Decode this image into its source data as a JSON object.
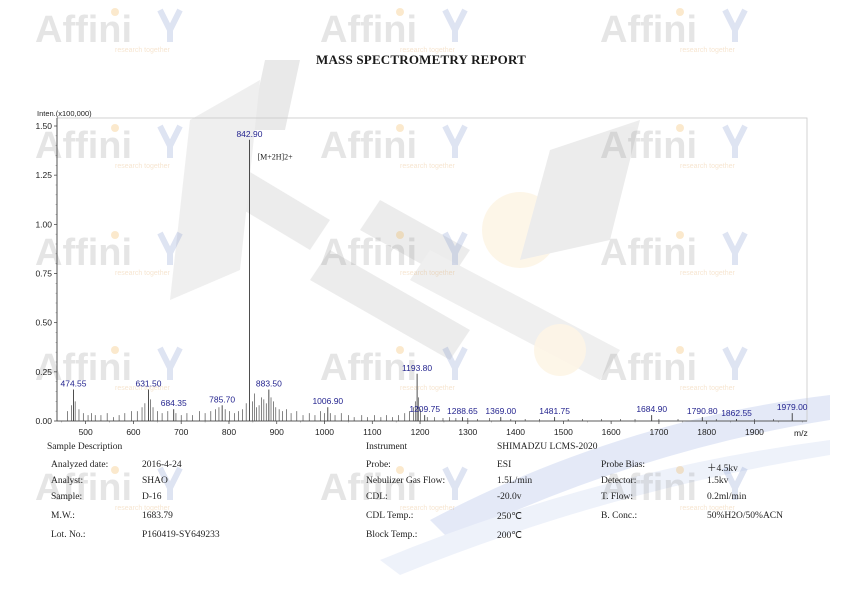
{
  "watermark": {
    "brand": "Affinity",
    "tagline": "research together"
  },
  "report": {
    "title": "MASS SPECTROMETRY REPORT"
  },
  "chart_data": {
    "type": "bar",
    "ylabel": "Inten.(x100,000)",
    "xlabel": "m/z",
    "xlim": [
      440,
      2010
    ],
    "ylim": [
      0,
      1.5
    ],
    "x_ticks": [
      500,
      600,
      700,
      800,
      900,
      1000,
      1100,
      1200,
      1300,
      1400,
      1500,
      1600,
      1700,
      1800,
      1900
    ],
    "y_ticks": [
      "0.00",
      "0.25",
      "0.50",
      "0.75",
      "1.00",
      "1.25",
      "1.50"
    ],
    "annotation": {
      "text": "[M+2H]2+",
      "x": 842.9
    },
    "labeled_peaks": [
      {
        "x": 474.55,
        "y": 0.16
      },
      {
        "x": 631.5,
        "y": 0.16
      },
      {
        "x": 684.35,
        "y": 0.06
      },
      {
        "x": 785.7,
        "y": 0.08
      },
      {
        "x": 842.9,
        "y": 1.43
      },
      {
        "x": 883.5,
        "y": 0.16
      },
      {
        "x": 1006.9,
        "y": 0.07
      },
      {
        "x": 1193.8,
        "y": 0.24
      },
      {
        "x": 1209.75,
        "y": 0.03
      },
      {
        "x": 1288.65,
        "y": 0.02
      },
      {
        "x": 1369.0,
        "y": 0.02
      },
      {
        "x": 1481.75,
        "y": 0.02
      },
      {
        "x": 1684.9,
        "y": 0.03
      },
      {
        "x": 1790.8,
        "y": 0.02
      },
      {
        "x": 1862.55,
        "y": 0.01
      },
      {
        "x": 1979.0,
        "y": 0.04
      }
    ],
    "minor_peaks": [
      [
        462,
        0.05
      ],
      [
        470,
        0.08
      ],
      [
        478,
        0.1
      ],
      [
        486,
        0.06
      ],
      [
        495,
        0.04
      ],
      [
        505,
        0.03
      ],
      [
        512,
        0.04
      ],
      [
        520,
        0.03
      ],
      [
        532,
        0.03
      ],
      [
        545,
        0.04
      ],
      [
        558,
        0.02
      ],
      [
        570,
        0.03
      ],
      [
        582,
        0.04
      ],
      [
        596,
        0.05
      ],
      [
        608,
        0.05
      ],
      [
        618,
        0.07
      ],
      [
        624,
        0.09
      ],
      [
        636,
        0.11
      ],
      [
        641,
        0.07
      ],
      [
        650,
        0.05
      ],
      [
        660,
        0.04
      ],
      [
        672,
        0.05
      ],
      [
        689,
        0.04
      ],
      [
        700,
        0.03
      ],
      [
        712,
        0.04
      ],
      [
        724,
        0.03
      ],
      [
        738,
        0.05
      ],
      [
        750,
        0.04
      ],
      [
        762,
        0.05
      ],
      [
        772,
        0.06
      ],
      [
        779,
        0.07
      ],
      [
        792,
        0.06
      ],
      [
        801,
        0.05
      ],
      [
        812,
        0.04
      ],
      [
        820,
        0.05
      ],
      [
        828,
        0.06
      ],
      [
        836,
        0.09
      ],
      [
        849,
        0.1
      ],
      [
        853,
        0.14
      ],
      [
        858,
        0.07
      ],
      [
        863,
        0.08
      ],
      [
        868,
        0.12
      ],
      [
        873,
        0.11
      ],
      [
        878,
        0.09
      ],
      [
        888,
        0.12
      ],
      [
        893,
        0.1
      ],
      [
        898,
        0.07
      ],
      [
        905,
        0.06
      ],
      [
        912,
        0.05
      ],
      [
        920,
        0.06
      ],
      [
        930,
        0.04
      ],
      [
        942,
        0.05
      ],
      [
        955,
        0.03
      ],
      [
        968,
        0.04
      ],
      [
        980,
        0.03
      ],
      [
        992,
        0.05
      ],
      [
        1000,
        0.04
      ],
      [
        1012,
        0.04
      ],
      [
        1022,
        0.03
      ],
      [
        1035,
        0.04
      ],
      [
        1050,
        0.03
      ],
      [
        1062,
        0.02
      ],
      [
        1078,
        0.03
      ],
      [
        1090,
        0.02
      ],
      [
        1105,
        0.03
      ],
      [
        1118,
        0.02
      ],
      [
        1130,
        0.03
      ],
      [
        1142,
        0.02
      ],
      [
        1155,
        0.03
      ],
      [
        1168,
        0.04
      ],
      [
        1178,
        0.05
      ],
      [
        1186,
        0.07
      ],
      [
        1190,
        0.1
      ],
      [
        1197,
        0.12
      ],
      [
        1201,
        0.06
      ],
      [
        1215,
        0.02
      ],
      [
        1230,
        0.02
      ],
      [
        1248,
        0.015
      ],
      [
        1262,
        0.02
      ],
      [
        1275,
        0.015
      ],
      [
        1300,
        0.015
      ],
      [
        1320,
        0.01
      ],
      [
        1345,
        0.015
      ],
      [
        1390,
        0.01
      ],
      [
        1420,
        0.01
      ],
      [
        1450,
        0.01
      ],
      [
        1510,
        0.01
      ],
      [
        1540,
        0.01
      ],
      [
        1580,
        0.01
      ],
      [
        1620,
        0.01
      ],
      [
        1650,
        0.01
      ],
      [
        1700,
        0.01
      ],
      [
        1740,
        0.01
      ],
      [
        1820,
        0.01
      ],
      [
        1900,
        0.01
      ],
      [
        1940,
        0.01
      ]
    ]
  },
  "details": {
    "sample_description": "Sample Description",
    "left": [
      {
        "label": "Analyzed date:",
        "value": "2016-4-24"
      },
      {
        "label": "Analyst:",
        "value": "SHAO"
      },
      {
        "label": "Sample:",
        "value": "D-16"
      },
      {
        "label": "M.W.:",
        "value": "1683.79"
      },
      {
        "label": "Lot. No.:",
        "value": "P160419-SY649233"
      }
    ],
    "instrument_label": "Instrument",
    "instrument_value": "SHIMADZU LCMS-2020",
    "middle": [
      {
        "label": "Probe:",
        "value": "ESI"
      },
      {
        "label": "Nebulizer Gas Flow:",
        "value": "1.5L/min"
      },
      {
        "label": "CDL:",
        "value": "-20.0v"
      },
      {
        "label": "CDL Temp.:",
        "value": "250℃"
      },
      {
        "label": "Block Temp.:",
        "value": "200℃"
      }
    ],
    "right": [
      {
        "label": "Probe Bias:",
        "value": "＋4.5kv"
      },
      {
        "label": "Detector:",
        "value": "1.5kv"
      },
      {
        "label": "T. Flow:",
        "value": "0.2ml/min"
      },
      {
        "label": "B. Conc.:",
        "value": "50%H2O/50%ACN"
      }
    ]
  }
}
